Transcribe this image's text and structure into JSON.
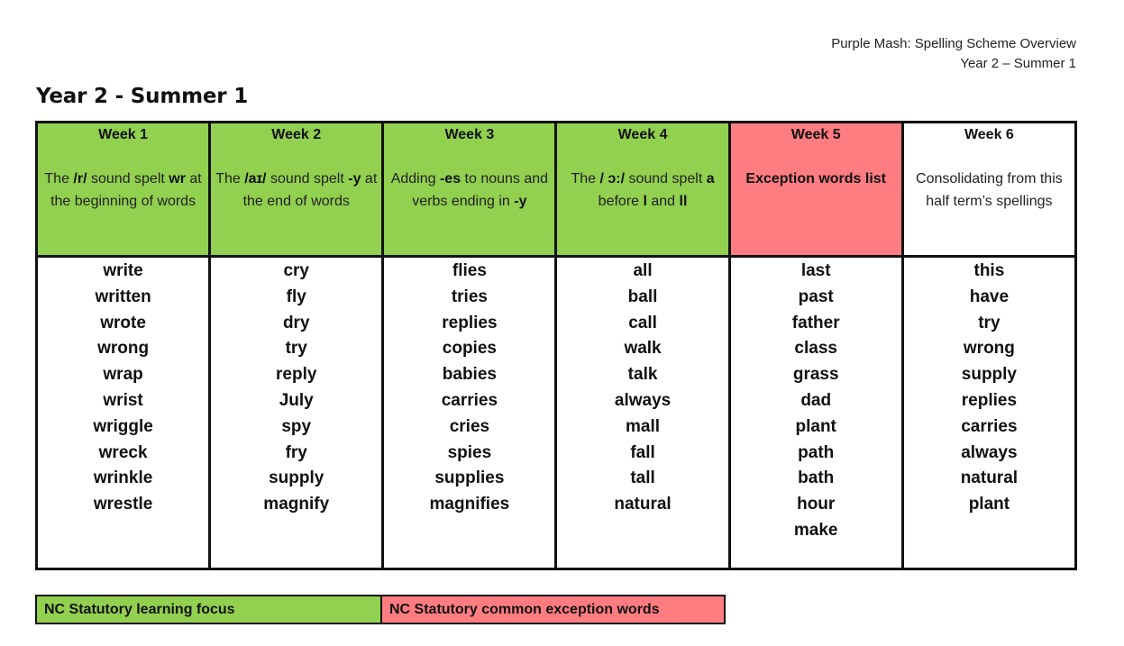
{
  "header": {
    "line1": "Purple Mash: Spelling Scheme Overview",
    "line2": "Year 2 – Summer 1"
  },
  "title": "Year 2 - Summer 1",
  "colors": {
    "statutory_focus": "#92d050",
    "exception_words": "#ff7c80",
    "plain": "#ffffff"
  },
  "weeks": [
    {
      "title": "Week 1",
      "type": "focus",
      "focus": [
        "The ",
        {
          "b": "/r/"
        },
        " sound spelt ",
        {
          "b": "wr"
        },
        " at the beginning of words"
      ],
      "words": [
        "write",
        "written",
        "wrote",
        "wrong",
        "wrap",
        "wrist",
        "wriggle",
        "wreck",
        "wrinkle",
        "wrestle"
      ]
    },
    {
      "title": "Week 2",
      "type": "focus",
      "focus": [
        "The ",
        {
          "b": "/aɪ/"
        },
        " sound spelt ",
        {
          "b": "-y"
        },
        " at the end of words"
      ],
      "words": [
        "cry",
        "fly",
        "dry",
        "try",
        "reply",
        "July",
        "spy",
        "fry",
        "supply",
        "magnify"
      ]
    },
    {
      "title": "Week 3",
      "type": "focus",
      "focus": [
        "Adding ",
        {
          "b": "-es"
        },
        " to nouns and verbs ending in ",
        {
          "b": "-y"
        }
      ],
      "words": [
        "flies",
        "tries",
        "replies",
        "copies",
        "babies",
        "carries",
        "cries",
        "spies",
        "supplies",
        "magnifies"
      ]
    },
    {
      "title": "Week 4",
      "type": "focus",
      "focus": [
        "The ",
        {
          "b": "/ ɔ:/"
        },
        " sound spelt ",
        {
          "b": "a"
        },
        " before ",
        {
          "b": "l"
        },
        " and ",
        {
          "b": "ll"
        }
      ],
      "words": [
        "all",
        "ball",
        "call",
        "walk",
        "talk",
        "always",
        "mall",
        "fall",
        "tall",
        "natural"
      ]
    },
    {
      "title": "Week 5",
      "type": "exception",
      "focus": [
        {
          "b": "Exception words list"
        }
      ],
      "words": [
        "last",
        "past",
        "father",
        "class",
        "grass",
        "dad",
        "plant",
        "path",
        "bath",
        "hour",
        "make"
      ]
    },
    {
      "title": "Week 6",
      "type": "plain",
      "focus": [
        "Consolidating from this half term’s spellings"
      ],
      "words": [
        "this",
        "have",
        "try",
        "wrong",
        "supply",
        "replies",
        "carries",
        "always",
        "natural",
        "plant"
      ]
    }
  ],
  "legend": {
    "focus_label": "NC Statutory learning focus",
    "exception_label": "NC Statutory common exception words"
  }
}
